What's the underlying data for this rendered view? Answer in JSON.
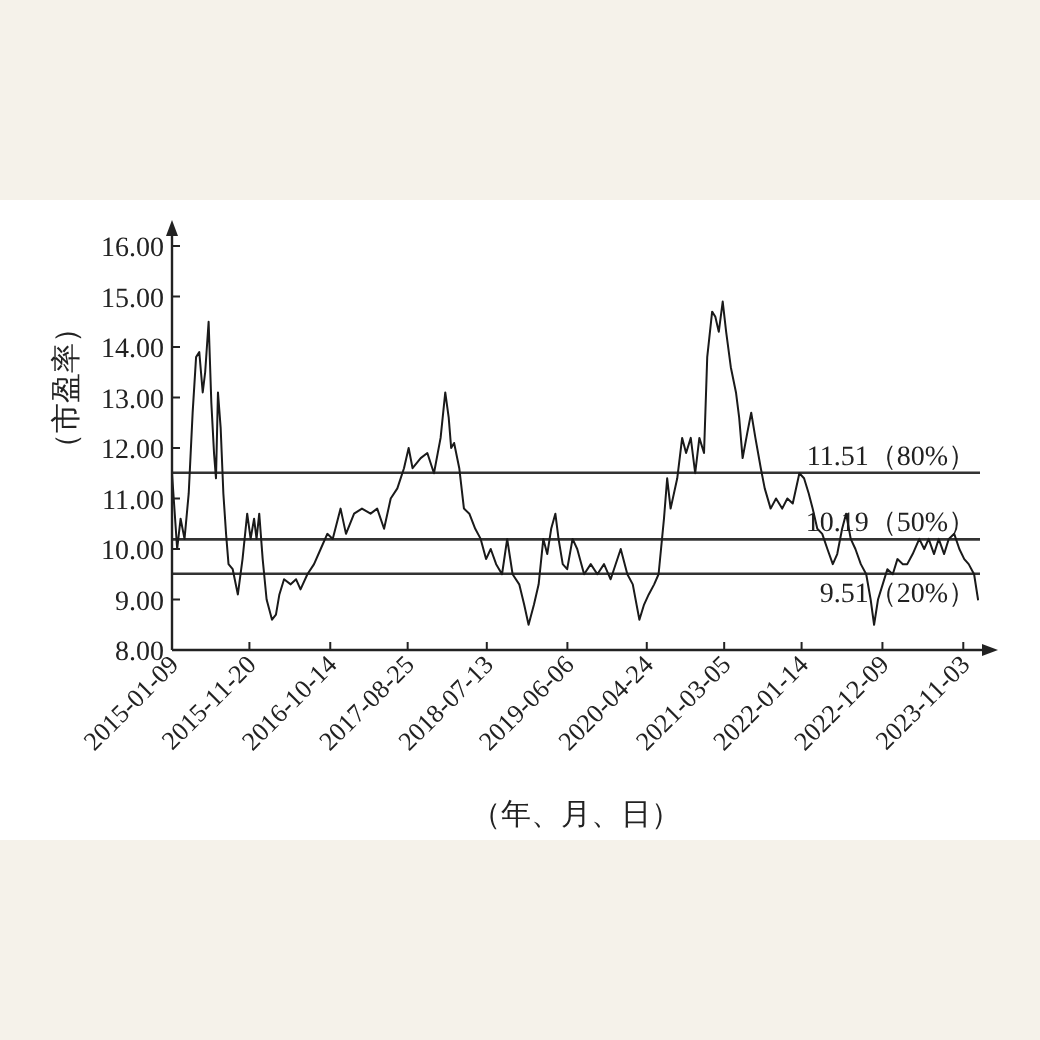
{
  "chart_data": {
    "type": "line",
    "xlabel": "（年、月、日）",
    "ylabel": "（市盈率）",
    "x": [
      "2015-01-09",
      "2015-01-30",
      "2015-02-13",
      "2015-03-01",
      "2015-03-18",
      "2015-04-03",
      "2015-04-17",
      "2015-04-30",
      "2015-05-14",
      "2015-05-24",
      "2015-06-07",
      "2015-06-18",
      "2015-06-29",
      "2015-07-07",
      "2015-07-15",
      "2015-07-26",
      "2015-08-06",
      "2015-08-17",
      "2015-08-27",
      "2015-09-13",
      "2015-10-04",
      "2015-10-23",
      "2015-11-11",
      "2015-11-25",
      "2015-12-09",
      "2015-12-19",
      "2015-12-30",
      "2016-01-13",
      "2016-01-29",
      "2016-02-20",
      "2016-03-07",
      "2016-03-21",
      "2016-04-09",
      "2016-05-06",
      "2016-05-28",
      "2016-06-15",
      "2016-07-13",
      "2016-08-09",
      "2016-09-05",
      "2016-10-02",
      "2016-10-24",
      "2016-11-25",
      "2016-12-17",
      "2017-01-19",
      "2017-02-20",
      "2017-03-27",
      "2017-04-23",
      "2017-05-21",
      "2017-06-17",
      "2017-07-14",
      "2017-08-10",
      "2017-08-29",
      "2017-09-14",
      "2017-10-17",
      "2017-11-13",
      "2017-12-10",
      "2018-01-06",
      "2018-01-25",
      "2018-02-08",
      "2018-02-18",
      "2018-03-02",
      "2018-03-23",
      "2018-04-11",
      "2018-05-03",
      "2018-05-27",
      "2018-06-18",
      "2018-07-10",
      "2018-07-29",
      "2018-08-20",
      "2018-09-13",
      "2018-10-04",
      "2018-10-26",
      "2018-11-22",
      "2018-12-12",
      "2018-12-30",
      "2019-01-21",
      "2019-02-09",
      "2019-02-28",
      "2019-03-16",
      "2019-04-01",
      "2019-04-18",
      "2019-05-01",
      "2019-05-18",
      "2019-06-05",
      "2019-06-27",
      "2019-07-16",
      "2019-08-13",
      "2019-09-09",
      "2019-10-06",
      "2019-11-02",
      "2019-11-29",
      "2020-01-09",
      "2020-02-05",
      "2020-02-27",
      "2020-03-25",
      "2020-04-13",
      "2020-05-02",
      "2020-05-24",
      "2020-06-11",
      "2020-07-03",
      "2020-07-16",
      "2020-07-30",
      "2020-08-26",
      "2020-09-15",
      "2020-10-01",
      "2020-10-20",
      "2020-11-07",
      "2020-11-24",
      "2020-12-13",
      "2020-12-26",
      "2021-01-15",
      "2021-01-28",
      "2021-02-11",
      "2021-02-27",
      "2021-03-13",
      "2021-04-01",
      "2021-04-22",
      "2021-05-05",
      "2021-05-19",
      "2021-06-07",
      "2021-06-23",
      "2021-07-10",
      "2021-08-01",
      "2021-08-17",
      "2021-09-10",
      "2021-10-02",
      "2021-10-27",
      "2021-11-17",
      "2021-12-09",
      "2022-01-05",
      "2022-01-24",
      "2022-02-12",
      "2022-02-28",
      "2022-03-19",
      "2022-04-08",
      "2022-04-29",
      "2022-05-21",
      "2022-06-08",
      "2022-06-28",
      "2022-07-14",
      "2022-08-02",
      "2022-08-21",
      "2022-09-12",
      "2022-10-04",
      "2022-10-22",
      "2022-11-05",
      "2022-11-21",
      "2022-12-10",
      "2022-12-29",
      "2023-01-20",
      "2023-02-08",
      "2023-03-02",
      "2023-03-20",
      "2023-04-11",
      "2023-05-08",
      "2023-05-28",
      "2023-06-15",
      "2023-07-07",
      "2023-07-26",
      "2023-08-17",
      "2023-09-05",
      "2023-09-27",
      "2023-10-18",
      "2023-11-07",
      "2023-11-25",
      "2023-12-17",
      "2024-01-02"
    ],
    "series": [
      {
        "color": "#1a1a1a",
        "values": [
          11.5,
          10.0,
          10.6,
          10.2,
          11.1,
          12.7,
          13.8,
          13.9,
          13.1,
          13.5,
          14.5,
          12.9,
          11.9,
          11.4,
          13.1,
          12.4,
          11.1,
          10.3,
          9.7,
          9.6,
          9.1,
          9.8,
          10.7,
          10.2,
          10.6,
          10.2,
          10.7,
          9.8,
          9.0,
          8.6,
          8.7,
          9.1,
          9.4,
          9.3,
          9.4,
          9.2,
          9.5,
          9.7,
          10.0,
          10.3,
          10.2,
          10.8,
          10.3,
          10.7,
          10.8,
          10.7,
          10.8,
          10.4,
          11.0,
          11.2,
          11.6,
          12.0,
          11.6,
          11.8,
          11.9,
          11.5,
          12.2,
          13.1,
          12.6,
          12.0,
          12.1,
          11.6,
          10.8,
          10.7,
          10.4,
          10.2,
          9.8,
          10.0,
          9.7,
          9.5,
          10.2,
          9.5,
          9.3,
          8.9,
          8.5,
          8.9,
          9.3,
          10.2,
          9.9,
          10.4,
          10.7,
          10.2,
          9.7,
          9.6,
          10.2,
          10.0,
          9.5,
          9.7,
          9.5,
          9.7,
          9.4,
          10.0,
          9.5,
          9.3,
          8.6,
          8.9,
          9.1,
          9.3,
          9.5,
          10.6,
          11.4,
          10.8,
          11.4,
          12.2,
          11.9,
          12.2,
          11.5,
          12.2,
          11.9,
          13.8,
          14.7,
          14.6,
          14.3,
          14.9,
          14.3,
          13.6,
          13.1,
          12.6,
          11.8,
          12.3,
          12.7,
          12.2,
          11.6,
          11.2,
          10.8,
          11.0,
          10.8,
          11.0,
          10.9,
          11.5,
          11.4,
          11.1,
          10.8,
          10.4,
          10.3,
          10.0,
          9.7,
          9.9,
          10.4,
          10.7,
          10.2,
          10.0,
          9.7,
          9.5,
          9.0,
          8.5,
          9.0,
          9.3,
          9.6,
          9.5,
          9.8,
          9.7,
          9.7,
          9.9,
          10.2,
          10.0,
          10.2,
          9.9,
          10.2,
          9.9,
          10.2,
          10.3,
          10.0,
          9.8,
          9.7,
          9.5,
          9.0
        ]
      }
    ],
    "xlim": [
      "2015-01-09",
      "2024-01-10"
    ],
    "xticks": [
      "2015-01-09",
      "2015-11-20",
      "2016-10-14",
      "2017-08-25",
      "2018-07-13",
      "2019-06-06",
      "2020-04-24",
      "2021-03-05",
      "2022-01-14",
      "2022-12-09",
      "2023-11-03"
    ],
    "ylim": [
      8,
      16
    ],
    "yticks": [
      {
        "value": 8,
        "label": "8.00"
      },
      {
        "value": 9,
        "label": "9.00"
      },
      {
        "value": 10,
        "label": "10.00"
      },
      {
        "value": 11,
        "label": "11.00"
      },
      {
        "value": 12,
        "label": "12.00"
      },
      {
        "value": 13,
        "label": "13.00"
      },
      {
        "value": 14,
        "label": "14.00"
      },
      {
        "value": 15,
        "label": "15.00"
      },
      {
        "value": 16,
        "label": "16.00"
      }
    ],
    "ref_lines": [
      {
        "axis": "y",
        "value": 11.51,
        "label": "11.51（80%）",
        "color": "#333333"
      },
      {
        "axis": "y",
        "value": 10.19,
        "label": "10.19（50%）",
        "color": "#333333"
      },
      {
        "axis": "y",
        "value": 9.51,
        "label": "9.51（20%）",
        "color": "#333333"
      }
    ]
  }
}
